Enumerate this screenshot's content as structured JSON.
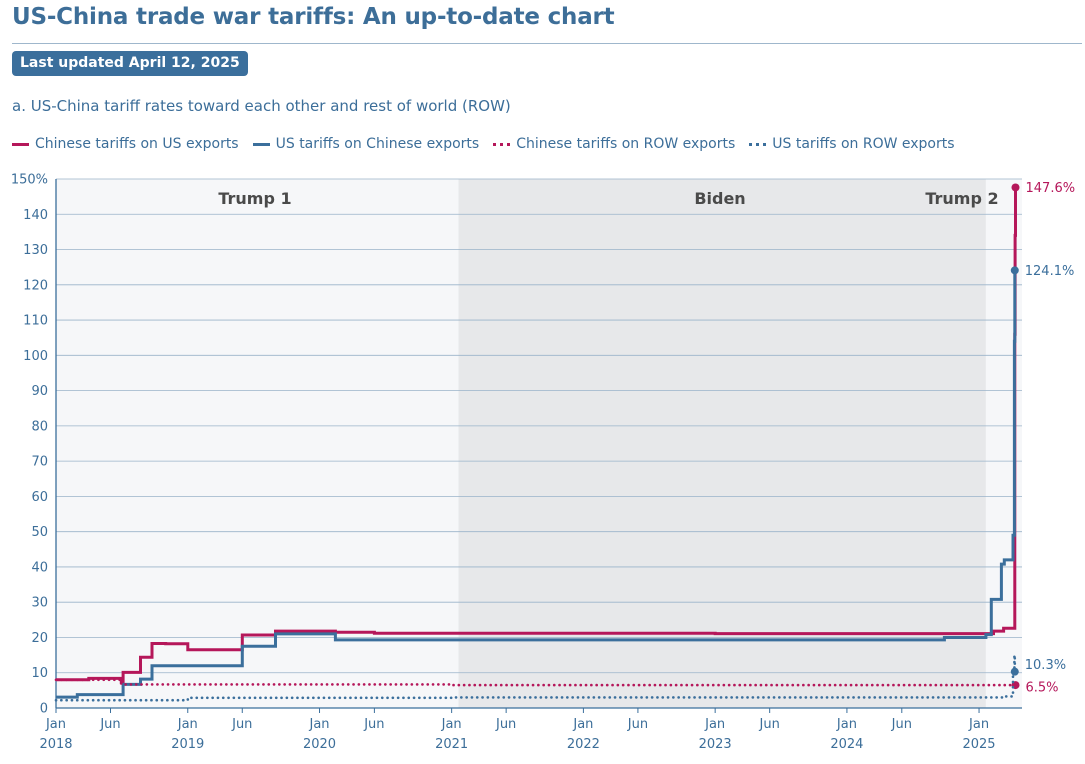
{
  "header": {
    "title": "US-China trade war tariffs: An up-to-date chart",
    "updated_badge": "Last updated April 12, 2025"
  },
  "chart_data": {
    "type": "line",
    "title": "a. US-China tariff rates toward each other and rest of world (ROW)",
    "xlabel": "",
    "ylabel": "",
    "ylim": [
      0,
      150
    ],
    "yticks": [
      0,
      10,
      20,
      30,
      40,
      50,
      60,
      70,
      80,
      90,
      100,
      110,
      120,
      130,
      140,
      150
    ],
    "ytick_labels": [
      "0",
      "10",
      "20",
      "30",
      "40",
      "50",
      "60",
      "70",
      "80",
      "90",
      "100",
      "110",
      "120",
      "130",
      "140",
      "150%"
    ],
    "xlim": [
      "2018-01-01",
      "2025-04-30"
    ],
    "xticks": [
      {
        "date": "2018-01-01",
        "label": "Jan",
        "year": "2018"
      },
      {
        "date": "2018-06-01",
        "label": "Jun"
      },
      {
        "date": "2019-01-01",
        "label": "Jan",
        "year": "2019"
      },
      {
        "date": "2019-06-01",
        "label": "Jun"
      },
      {
        "date": "2020-01-01",
        "label": "Jan",
        "year": "2020"
      },
      {
        "date": "2020-06-01",
        "label": "Jun"
      },
      {
        "date": "2021-01-01",
        "label": "Jan",
        "year": "2021"
      },
      {
        "date": "2021-06-01",
        "label": "Jun"
      },
      {
        "date": "2022-01-01",
        "label": "Jan",
        "year": "2022"
      },
      {
        "date": "2022-06-01",
        "label": "Jun"
      },
      {
        "date": "2023-01-01",
        "label": "Jan",
        "year": "2023"
      },
      {
        "date": "2023-06-01",
        "label": "Jun"
      },
      {
        "date": "2024-01-01",
        "label": "Jan",
        "year": "2024"
      },
      {
        "date": "2024-06-01",
        "label": "Jun"
      },
      {
        "date": "2025-01-01",
        "label": "Jan",
        "year": "2025"
      }
    ],
    "grid": true,
    "legend_position": "top",
    "periods": [
      {
        "label": "Trump 1",
        "start": "2018-01-01",
        "end": "2021-01-20",
        "shade": "#f6f7f9"
      },
      {
        "label": "Biden",
        "start": "2021-01-20",
        "end": "2025-01-20",
        "shade": "#e7e8ea"
      },
      {
        "label": "Trump 2",
        "start": "2025-01-20",
        "end": "2025-04-30",
        "shade": "#f6f7f9"
      }
    ],
    "series": [
      {
        "name": "Chinese tariffs on US exports",
        "color": "#b5175a",
        "style": "solid",
        "end_label": "147.6%",
        "points": [
          [
            "2018-01-01",
            8.0
          ],
          [
            "2018-04-02",
            8.4
          ],
          [
            "2018-07-01",
            7.2
          ],
          [
            "2018-07-06",
            10.1
          ],
          [
            "2018-08-23",
            14.4
          ],
          [
            "2018-09-24",
            18.3
          ],
          [
            "2018-11-01",
            18.2
          ],
          [
            "2019-01-01",
            16.5
          ],
          [
            "2019-06-01",
            20.7
          ],
          [
            "2019-09-01",
            21.8
          ],
          [
            "2019-12-15",
            21.8
          ],
          [
            "2020-02-14",
            21.5
          ],
          [
            "2020-06-01",
            21.2
          ],
          [
            "2021-01-01",
            21.2
          ],
          [
            "2022-01-01",
            21.2
          ],
          [
            "2023-01-01",
            21.1
          ],
          [
            "2024-01-01",
            21.1
          ],
          [
            "2025-01-20",
            21.1
          ],
          [
            "2025-02-10",
            21.8
          ],
          [
            "2025-03-10",
            22.6
          ],
          [
            "2025-04-04",
            22.6
          ],
          [
            "2025-04-10",
            106.0
          ],
          [
            "2025-04-11",
            134.0
          ],
          [
            "2025-04-12",
            147.6
          ]
        ]
      },
      {
        "name": "US tariffs on Chinese exports",
        "color": "#3b6f9c",
        "style": "solid",
        "end_label": "124.1%",
        "points": [
          [
            "2018-01-01",
            3.1
          ],
          [
            "2018-03-01",
            3.8
          ],
          [
            "2018-07-06",
            6.7
          ],
          [
            "2018-08-23",
            8.2
          ],
          [
            "2018-09-24",
            12.0
          ],
          [
            "2019-06-01",
            17.5
          ],
          [
            "2019-09-01",
            21.0
          ],
          [
            "2019-10-01",
            21.0
          ],
          [
            "2020-02-14",
            19.3
          ],
          [
            "2021-01-01",
            19.3
          ],
          [
            "2022-01-01",
            19.3
          ],
          [
            "2023-01-01",
            19.3
          ],
          [
            "2024-01-01",
            19.3
          ],
          [
            "2024-09-27",
            20.0
          ],
          [
            "2025-01-20",
            20.8
          ],
          [
            "2025-02-04",
            30.8
          ],
          [
            "2025-03-04",
            40.8
          ],
          [
            "2025-03-12",
            42.0
          ],
          [
            "2025-04-02",
            42.0
          ],
          [
            "2025-04-05",
            49.0
          ],
          [
            "2025-04-09",
            104.0
          ],
          [
            "2025-04-10",
            124.1
          ]
        ]
      },
      {
        "name": "Chinese tariffs on ROW exports",
        "color": "#b5175a",
        "style": "dotted",
        "end_label": "6.5%",
        "points": [
          [
            "2018-01-01",
            8.0
          ],
          [
            "2018-07-01",
            6.7
          ],
          [
            "2019-01-01",
            6.7
          ],
          [
            "2021-01-01",
            6.5
          ],
          [
            "2025-04-12",
            6.5
          ]
        ]
      },
      {
        "name": "US tariffs on ROW exports",
        "color": "#3b6f9c",
        "style": "dotted",
        "end_label": "10.3%",
        "points": [
          [
            "2018-01-01",
            2.2
          ],
          [
            "2019-01-01",
            2.9
          ],
          [
            "2021-01-01",
            3.0
          ],
          [
            "2024-01-01",
            3.0
          ],
          [
            "2025-03-12",
            3.3
          ],
          [
            "2025-04-05",
            10.3
          ],
          [
            "2025-04-09",
            15.0
          ],
          [
            "2025-04-10",
            10.3
          ]
        ]
      }
    ]
  }
}
